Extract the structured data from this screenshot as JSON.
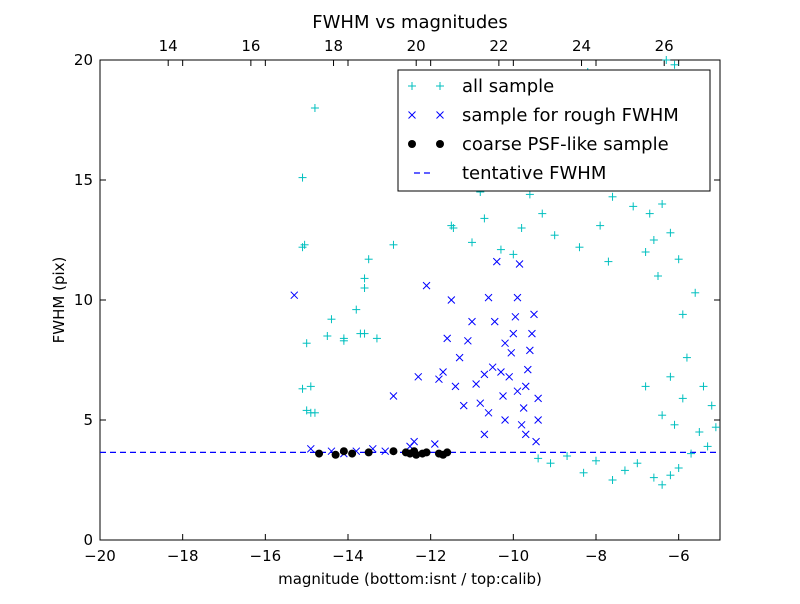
{
  "chart_data": {
    "type": "scatter",
    "title": "FWHM vs magnitudes",
    "xlabel": "magnitude (bottom:isnt / top:calib)",
    "ylabel": "FWHM (pix)",
    "xlim": [
      -20,
      -5
    ],
    "ylim": [
      0,
      20
    ],
    "top_axis_range": [
      12.35,
      27.35
    ],
    "x_ticks": [
      -20,
      -18,
      -16,
      -14,
      -12,
      -10,
      -8,
      -6
    ],
    "x_tick_labels": [
      "−20",
      "−18",
      "−16",
      "−14",
      "−12",
      "−10",
      "−8",
      "−6"
    ],
    "top_ticks": [
      14,
      16,
      18,
      20,
      22,
      24,
      26
    ],
    "top_tick_labels": [
      "14",
      "16",
      "18",
      "20",
      "22",
      "24",
      "26"
    ],
    "y_ticks": [
      0,
      5,
      10,
      15,
      20
    ],
    "y_tick_labels": [
      "0",
      "5",
      "10",
      "15",
      "20"
    ],
    "grid": false,
    "legend_position": "top-right",
    "legend": [
      {
        "label": "all sample",
        "marker": "plus",
        "color": "#00bfbf"
      },
      {
        "label": "sample for rough FWHM",
        "marker": "x",
        "color": "#0000ff"
      },
      {
        "label": "coarse PSF-like sample",
        "marker": "dot",
        "color": "#000000"
      },
      {
        "label": "tentative FWHM",
        "marker": "dash",
        "color": "#0000ff"
      }
    ],
    "tentative_fwhm": 3.65,
    "series": [
      {
        "name": "all sample",
        "color": "#00bfbf",
        "marker": "plus",
        "points": [
          [
            -14.8,
            18.0
          ],
          [
            -15.1,
            15.1
          ],
          [
            -15.05,
            12.3
          ],
          [
            -15.1,
            12.2
          ],
          [
            -15.0,
            8.2
          ],
          [
            -15.1,
            6.3
          ],
          [
            -14.9,
            6.4
          ],
          [
            -14.9,
            5.3
          ],
          [
            -15.0,
            5.4
          ],
          [
            -14.8,
            5.3
          ],
          [
            -14.5,
            8.5
          ],
          [
            -14.4,
            9.2
          ],
          [
            -14.1,
            8.4
          ],
          [
            -14.1,
            8.3
          ],
          [
            -13.8,
            9.6
          ],
          [
            -13.6,
            10.9
          ],
          [
            -13.6,
            10.5
          ],
          [
            -13.5,
            11.7
          ],
          [
            -13.7,
            8.6
          ],
          [
            -13.3,
            8.4
          ],
          [
            -13.6,
            8.6
          ],
          [
            -12.9,
            12.3
          ],
          [
            -11.5,
            13.1
          ],
          [
            -11.45,
            13.0
          ],
          [
            -11.0,
            12.4
          ],
          [
            -10.8,
            14.5
          ],
          [
            -10.7,
            14.7
          ],
          [
            -10.7,
            13.4
          ],
          [
            -10.3,
            12.1
          ],
          [
            -10.0,
            11.9
          ],
          [
            -9.8,
            13.0
          ],
          [
            -9.7,
            15.0
          ],
          [
            -9.6,
            14.4
          ],
          [
            -10.4,
            16.4
          ],
          [
            -10.3,
            17.0
          ],
          [
            -9.5,
            17.8
          ],
          [
            -9.2,
            17.5
          ],
          [
            -8.8,
            17.2
          ],
          [
            -8.4,
            18.5
          ],
          [
            -8.2,
            19.5
          ],
          [
            -7.8,
            18.3
          ],
          [
            -7.5,
            16.5
          ],
          [
            -7.2,
            15.2
          ],
          [
            -6.9,
            16.7
          ],
          [
            -6.7,
            13.6
          ],
          [
            -6.4,
            14.0
          ],
          [
            -6.6,
            12.5
          ],
          [
            -6.2,
            12.8
          ],
          [
            -6.0,
            11.7
          ],
          [
            -5.9,
            9.4
          ],
          [
            -5.6,
            10.3
          ],
          [
            -6.3,
            20.0
          ],
          [
            -6.1,
            19.8
          ],
          [
            -7.0,
            18.9
          ],
          [
            -8.3,
            19.4
          ],
          [
            -9.2,
            18.7
          ],
          [
            -9.6,
            18.4
          ],
          [
            -8.9,
            16.3
          ],
          [
            -8.1,
            16.9
          ],
          [
            -7.4,
            17.8
          ],
          [
            -7.6,
            14.3
          ],
          [
            -8.6,
            14.8
          ],
          [
            -9.3,
            13.6
          ],
          [
            -7.9,
            13.1
          ],
          [
            -7.1,
            13.9
          ],
          [
            -6.8,
            12.0
          ],
          [
            -9.0,
            12.7
          ],
          [
            -8.4,
            12.2
          ],
          [
            -7.7,
            11.6
          ],
          [
            -6.5,
            11.0
          ],
          [
            -5.8,
            7.6
          ],
          [
            -5.4,
            6.4
          ],
          [
            -5.2,
            5.6
          ],
          [
            -5.1,
            4.7
          ],
          [
            -5.3,
            3.9
          ],
          [
            -5.5,
            4.5
          ],
          [
            -5.7,
            3.6
          ],
          [
            -6.0,
            3.0
          ],
          [
            -6.2,
            2.7
          ],
          [
            -6.4,
            2.3
          ],
          [
            -6.6,
            2.6
          ],
          [
            -7.0,
            3.2
          ],
          [
            -7.3,
            2.9
          ],
          [
            -7.6,
            2.5
          ],
          [
            -8.0,
            3.3
          ],
          [
            -8.3,
            2.8
          ],
          [
            -8.7,
            3.5
          ],
          [
            -9.1,
            3.2
          ],
          [
            -9.4,
            3.4
          ],
          [
            -6.8,
            6.4
          ],
          [
            -6.4,
            5.2
          ],
          [
            -6.1,
            4.8
          ],
          [
            -5.9,
            5.9
          ],
          [
            -6.2,
            6.8
          ]
        ]
      },
      {
        "name": "sample for rough FWHM",
        "color": "#0000ff",
        "marker": "x",
        "points": [
          [
            -15.3,
            10.2
          ],
          [
            -14.9,
            3.8
          ],
          [
            -14.4,
            3.7
          ],
          [
            -14.1,
            3.6
          ],
          [
            -13.8,
            3.7
          ],
          [
            -13.4,
            3.8
          ],
          [
            -13.1,
            3.7
          ],
          [
            -12.9,
            6.0
          ],
          [
            -12.5,
            3.9
          ],
          [
            -12.4,
            4.1
          ],
          [
            -12.3,
            6.8
          ],
          [
            -12.1,
            10.6
          ],
          [
            -11.9,
            4.0
          ],
          [
            -11.8,
            6.7
          ],
          [
            -11.6,
            8.4
          ],
          [
            -11.5,
            10.0
          ],
          [
            -11.4,
            6.4
          ],
          [
            -11.3,
            7.6
          ],
          [
            -11.1,
            8.3
          ],
          [
            -11.0,
            9.1
          ],
          [
            -10.9,
            6.5
          ],
          [
            -10.8,
            5.7
          ],
          [
            -10.7,
            4.4
          ],
          [
            -10.6,
            10.1
          ],
          [
            -10.5,
            7.2
          ],
          [
            -10.45,
            9.1
          ],
          [
            -10.4,
            11.6
          ],
          [
            -10.3,
            7.0
          ],
          [
            -10.25,
            6.0
          ],
          [
            -10.2,
            5.0
          ],
          [
            -10.1,
            6.8
          ],
          [
            -10.05,
            7.8
          ],
          [
            -10.0,
            8.6
          ],
          [
            -9.95,
            9.3
          ],
          [
            -9.9,
            10.1
          ],
          [
            -9.85,
            11.5
          ],
          [
            -9.8,
            4.8
          ],
          [
            -9.75,
            5.5
          ],
          [
            -9.7,
            6.4
          ],
          [
            -9.65,
            7.1
          ],
          [
            -9.6,
            7.9
          ],
          [
            -9.55,
            8.6
          ],
          [
            -9.5,
            9.4
          ],
          [
            -9.45,
            4.1
          ],
          [
            -9.4,
            5.0
          ],
          [
            -9.4,
            5.9
          ],
          [
            -10.6,
            5.3
          ],
          [
            -10.7,
            6.9
          ],
          [
            -10.2,
            8.2
          ],
          [
            -9.9,
            6.2
          ],
          [
            -9.7,
            4.4
          ],
          [
            -11.7,
            7.0
          ],
          [
            -11.2,
            5.6
          ]
        ]
      },
      {
        "name": "coarse PSF-like sample",
        "color": "#000000",
        "marker": "dot",
        "points": [
          [
            -14.7,
            3.6
          ],
          [
            -14.3,
            3.55
          ],
          [
            -14.1,
            3.7
          ],
          [
            -13.9,
            3.6
          ],
          [
            -13.5,
            3.65
          ],
          [
            -12.9,
            3.7
          ],
          [
            -12.6,
            3.65
          ],
          [
            -12.5,
            3.6
          ],
          [
            -12.4,
            3.7
          ],
          [
            -12.35,
            3.55
          ],
          [
            -12.2,
            3.6
          ],
          [
            -12.1,
            3.65
          ],
          [
            -11.8,
            3.6
          ],
          [
            -11.7,
            3.55
          ],
          [
            -11.6,
            3.65
          ]
        ]
      }
    ]
  }
}
